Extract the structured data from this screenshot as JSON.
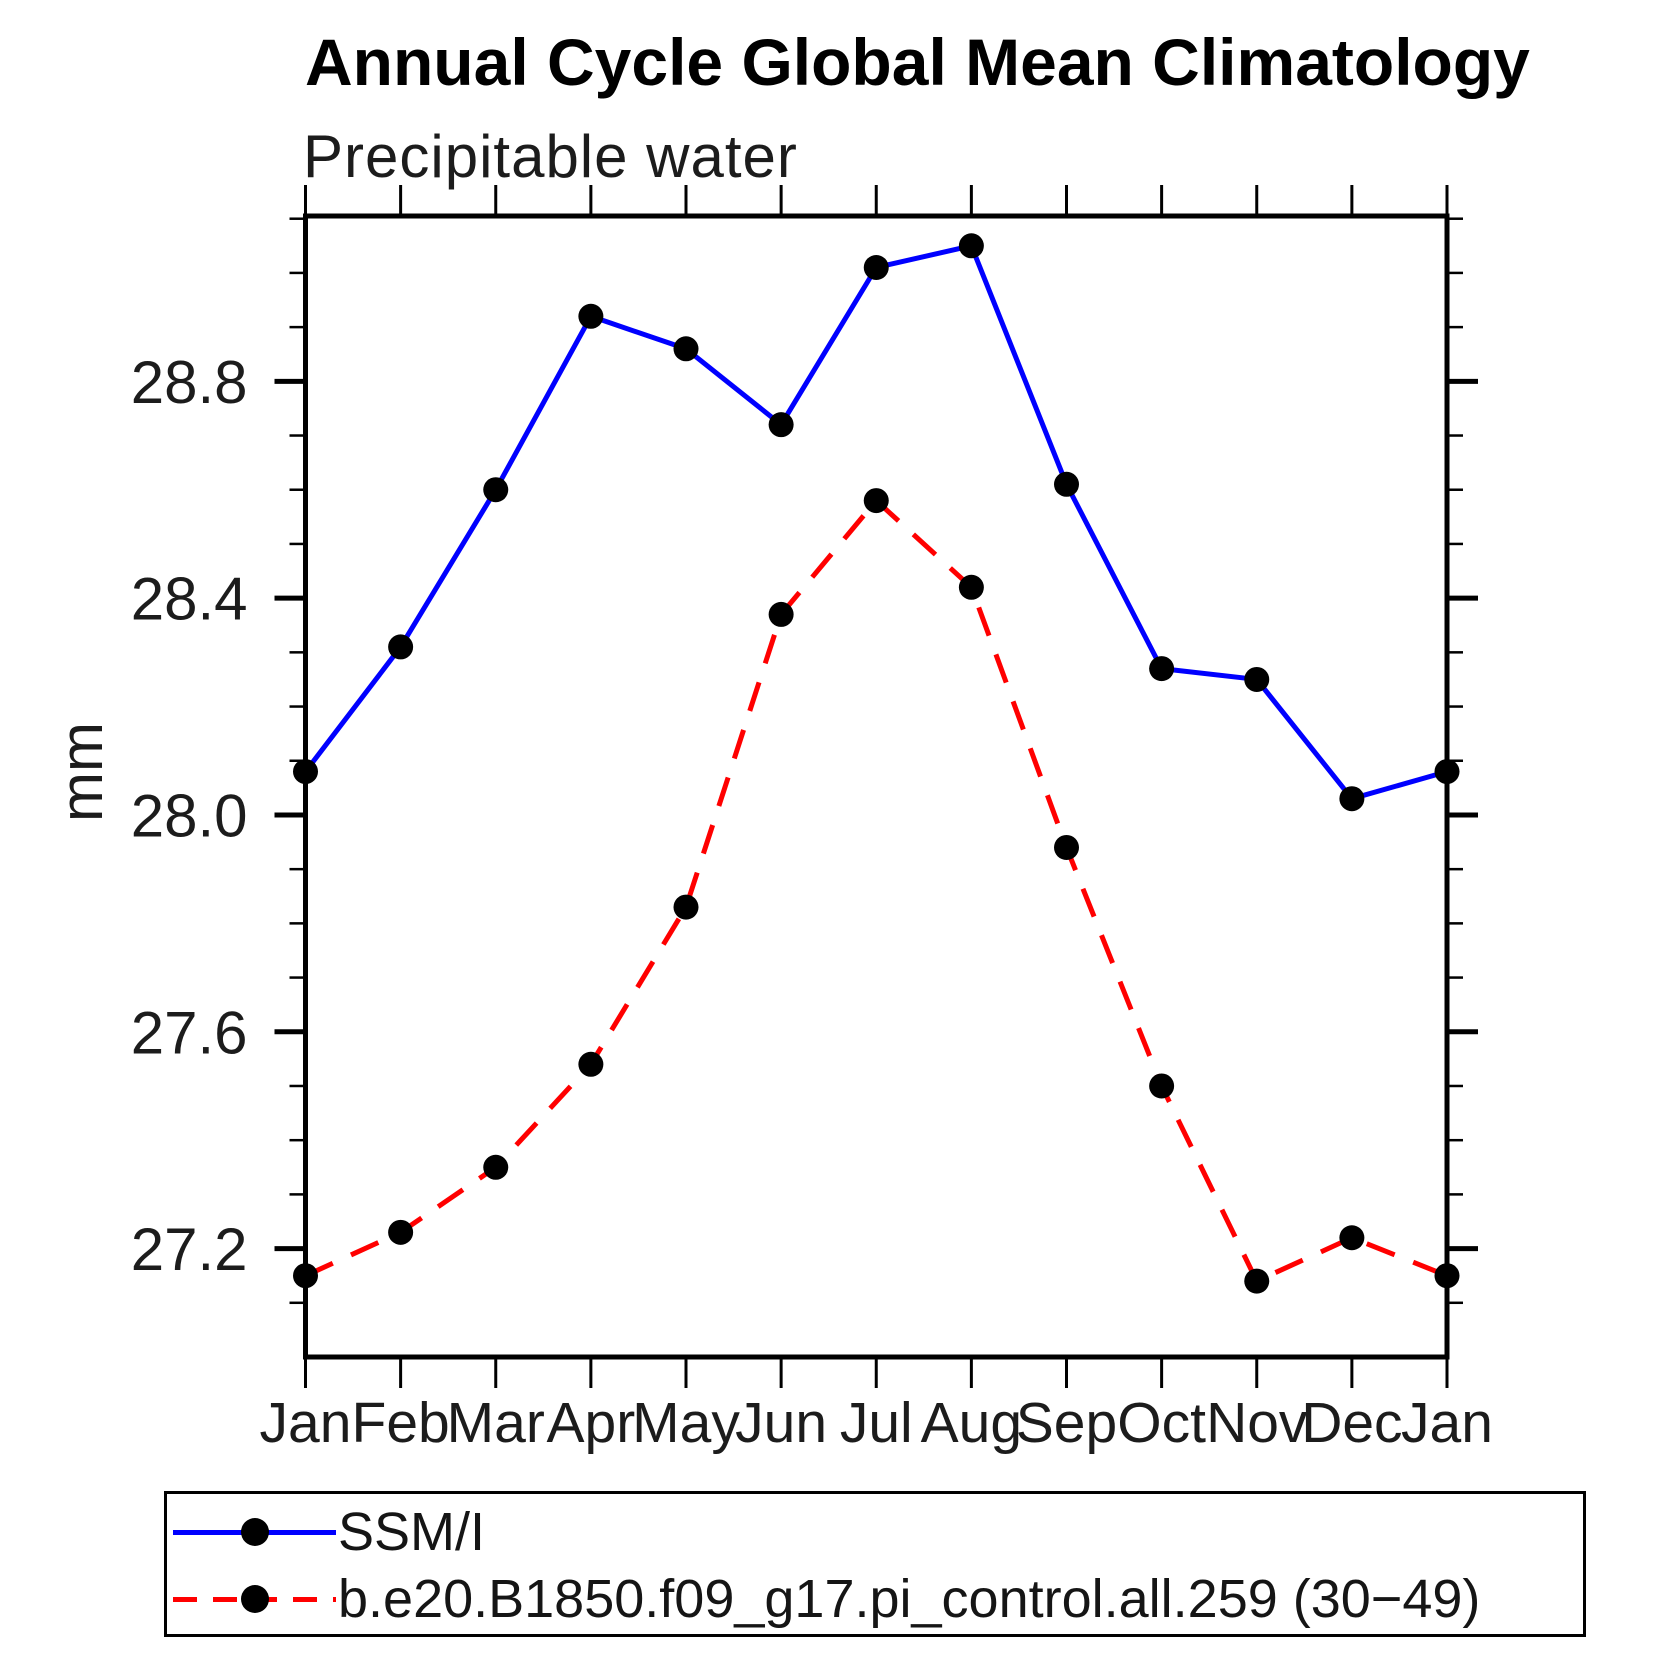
{
  "title": "Annual Cycle Global Mean Climatology",
  "subtitle": "Precipitable water",
  "ylabel": "mm",
  "colors": {
    "obs_line": "#0000ff",
    "model_line": "#ff0000",
    "marker": "#000000",
    "axis": "#000000"
  },
  "legend": {
    "items": [
      {
        "label": "SSM/I",
        "color": "#0000ff",
        "style": "solid"
      },
      {
        "label": "b.e20.B1850.f09_g17.pi_control.all.259 (30−49)",
        "color": "#ff0000",
        "style": "dashed"
      }
    ]
  },
  "chart_data": {
    "type": "line",
    "title": "Annual Cycle Global Mean Climatology",
    "left_string": "Precipitable water",
    "xlabel": "",
    "ylabel": "mm",
    "categories": [
      "Jan",
      "Feb",
      "Mar",
      "Apr",
      "May",
      "Jun",
      "Jul",
      "Aug",
      "Sep",
      "Oct",
      "Nov",
      "Dec",
      "Jan"
    ],
    "series": [
      {
        "name": "SSM/I",
        "color": "#0000ff",
        "line_style": "solid",
        "marker": "filled-circle",
        "marker_color": "#000000",
        "values": [
          28.08,
          28.31,
          28.6,
          28.92,
          28.86,
          28.72,
          29.01,
          29.05,
          28.61,
          28.27,
          28.25,
          28.03,
          28.08
        ]
      },
      {
        "name": "b.e20.B1850.f09_g17.pi_control.all.259 (30−49)",
        "color": "#ff0000",
        "line_style": "dashed",
        "marker": "filled-circle",
        "marker_color": "#000000",
        "values": [
          27.15,
          27.23,
          27.35,
          27.54,
          27.83,
          28.37,
          28.58,
          28.42,
          27.94,
          27.5,
          27.14,
          27.22,
          27.15
        ]
      }
    ],
    "ylim": [
      27.0,
      29.105
    ],
    "yticks_major": [
      27.2,
      27.6,
      28.0,
      28.4,
      28.8
    ],
    "ytick_labels": [
      "27.2",
      "27.6",
      "28.0",
      "28.4",
      "28.8"
    ],
    "ytick_minor_step": 0.1,
    "grid": false,
    "legend_position": "below-left"
  }
}
